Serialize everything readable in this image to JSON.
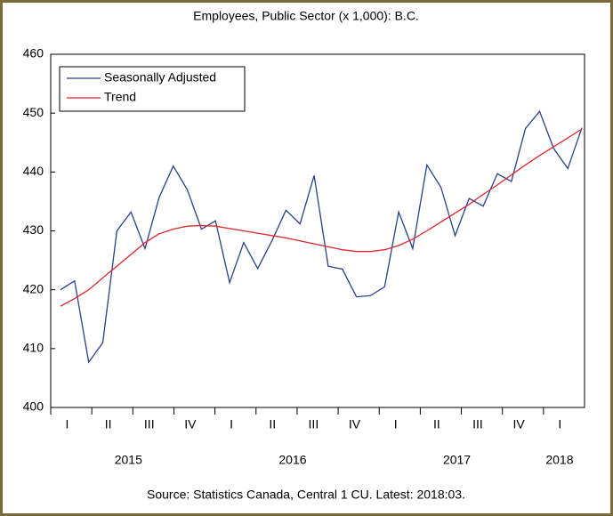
{
  "chart_data": {
    "type": "line",
    "title": "Employees, Public Sector (x 1,000): B.C.",
    "source": "Source: Statistics Canada, Central 1 CU. Latest: 2018:03.",
    "quarters": [
      "I",
      "II",
      "III",
      "IV",
      "I",
      "II",
      "III",
      "IV",
      "I",
      "II",
      "III",
      "IV",
      "I"
    ],
    "years": [
      "2015",
      "2016",
      "2017",
      "2018"
    ],
    "ylim": [
      400,
      460
    ],
    "yticks": [
      400,
      410,
      420,
      430,
      440,
      450,
      460
    ],
    "legend": "top-left",
    "series": [
      {
        "name": "Seasonally Adjusted",
        "color": "#2b3f8c",
        "values": [
          420,
          421.5,
          407.7,
          411,
          430,
          433.2,
          427,
          435.7,
          441,
          437,
          430.3,
          431.7,
          421.2,
          428,
          423.6,
          428.3,
          433.5,
          431.2,
          439.4,
          424,
          423.5,
          418.8,
          419,
          420.5,
          433.2,
          427,
          441.2,
          437.4,
          429.2,
          435.5,
          434.2,
          439.7,
          438.4,
          447.4,
          450.3,
          444,
          440.6,
          447.5
        ]
      },
      {
        "name": "Trend",
        "color": "#e0262a",
        "values": [
          417.2,
          418.5,
          420,
          422,
          424,
          426,
          428,
          429.5,
          430.3,
          430.8,
          430.9,
          430.8,
          430.4,
          430,
          429.6,
          429.2,
          428.8,
          428.3,
          427.8,
          427.3,
          426.8,
          426.5,
          426.5,
          426.8,
          427.5,
          428.6,
          430,
          431.5,
          433,
          434.5,
          436.2,
          437.8,
          439.5,
          441.2,
          442.8,
          444.3,
          445.8,
          447.3
        ]
      }
    ]
  }
}
